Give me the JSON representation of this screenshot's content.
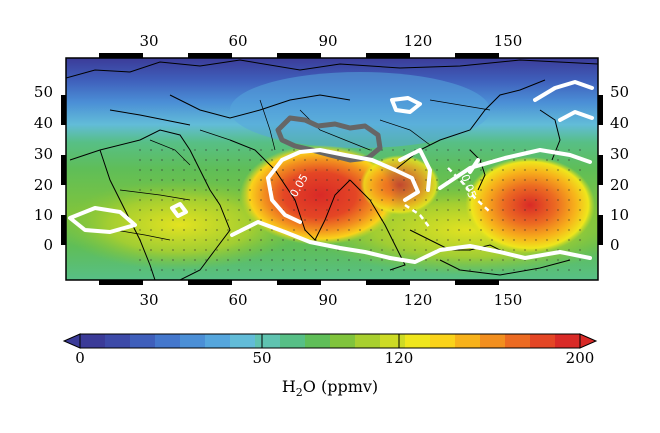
{
  "map": {
    "lon_ticks": [
      "30",
      "60",
      "90",
      "120",
      "150"
    ],
    "lat_ticks": [
      "50",
      "40",
      "30",
      "20",
      "10",
      "0"
    ],
    "contour_labels": [
      "0.05",
      "0.05"
    ]
  },
  "colorbar": {
    "ticks": [
      "0",
      "50",
      "120",
      "200"
    ],
    "label_main": "H",
    "label_sub": "2",
    "label_rest": "O (ppmv)",
    "colors": [
      "#3b3b98",
      "#3d4aa8",
      "#3f5fbb",
      "#4477cc",
      "#4b8fd6",
      "#55a6dd",
      "#62bcd8",
      "#5fc3b0",
      "#57bf86",
      "#5fbe58",
      "#80c43c",
      "#a8cf2f",
      "#cddb25",
      "#efe61c",
      "#fad31a",
      "#f7b21b",
      "#f28f1f",
      "#ec6b22",
      "#e44625",
      "#d92a27"
    ]
  },
  "field": {
    "background": "#5fbe58"
  }
}
